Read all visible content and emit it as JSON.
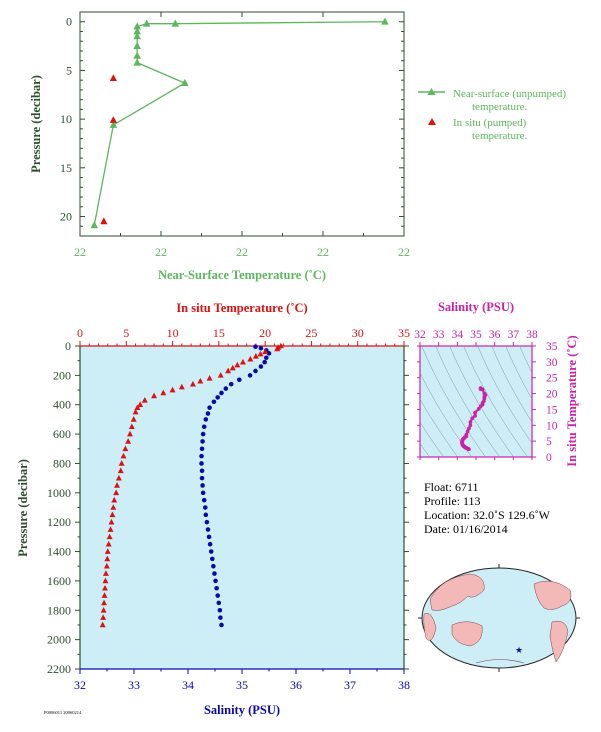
{
  "colors": {
    "green": "#5cb85c",
    "red": "#dd1111",
    "blue": "#0a0aa8",
    "magenta": "#cc22aa",
    "plot_bg": "#cdeef6",
    "axis_dark": "#2f4f2f"
  },
  "chart_data": [
    {
      "id": "near_surface",
      "type": "scatter",
      "xlabel": "Near-Surface Temperature (˚C)",
      "ylabel": "Pressure (decibar)",
      "x_tick_labels": [
        "22",
        "22",
        "22",
        "22",
        "22"
      ],
      "y_ticks": [
        0,
        5,
        10,
        15,
        20
      ],
      "ylim": [
        22,
        -1
      ],
      "series": [
        {
          "name": "Near-surface (unpumped) temperature.",
          "marker": "triangle-line",
          "points": [
            {
              "x": 22.28,
              "y": 0.0
            },
            {
              "x": 22.06,
              "y": 0.2
            },
            {
              "x": 22.03,
              "y": 0.2
            },
            {
              "x": 22.02,
              "y": 0.5
            },
            {
              "x": 22.02,
              "y": 1.0
            },
            {
              "x": 22.02,
              "y": 1.5
            },
            {
              "x": 22.02,
              "y": 2.5
            },
            {
              "x": 22.02,
              "y": 3.5
            },
            {
              "x": 22.02,
              "y": 4.2
            },
            {
              "x": 22.07,
              "y": 6.3
            },
            {
              "x": 21.995,
              "y": 10.6
            },
            {
              "x": 21.975,
              "y": 20.9
            }
          ]
        },
        {
          "name": "In situ (pumped) temperature.",
          "marker": "triangle",
          "points": [
            {
              "x": 21.995,
              "y": 5.8
            },
            {
              "x": 21.995,
              "y": 10.1
            },
            {
              "x": 21.985,
              "y": 20.5
            }
          ]
        }
      ]
    },
    {
      "id": "profile",
      "type": "scatter",
      "title_top": "In situ Temperature (˚C)",
      "xlabel": "Salinity (PSU)",
      "ylabel": "Pressure (decibar)",
      "top_ticks": [
        0,
        5,
        10,
        15,
        20,
        25,
        30,
        35
      ],
      "bottom_ticks": [
        32,
        33,
        34,
        35,
        36,
        37,
        38
      ],
      "y_ticks": [
        0,
        200,
        400,
        600,
        800,
        1000,
        1200,
        1400,
        1600,
        1800,
        2000,
        2200
      ],
      "temp_xlim": [
        0,
        35
      ],
      "sal_xlim": [
        32,
        38
      ],
      "ylim": [
        0,
        2200
      ],
      "temperature": [
        [
          21.7,
          0
        ],
        [
          21.4,
          10
        ],
        [
          21.3,
          20
        ],
        [
          20.0,
          40
        ],
        [
          19.5,
          55
        ],
        [
          19.0,
          70
        ],
        [
          18.4,
          90
        ],
        [
          17.6,
          110
        ],
        [
          17.0,
          130
        ],
        [
          16.5,
          150
        ],
        [
          16.0,
          170
        ],
        [
          15.2,
          200
        ],
        [
          14.0,
          220
        ],
        [
          13.0,
          240
        ],
        [
          12.2,
          260
        ],
        [
          11.0,
          280
        ],
        [
          10.0,
          300
        ],
        [
          9.0,
          320
        ],
        [
          8.0,
          340
        ],
        [
          7.0,
          370
        ],
        [
          6.5,
          400
        ],
        [
          6.2,
          420
        ],
        [
          6.0,
          450
        ],
        [
          5.8,
          500
        ],
        [
          5.6,
          550
        ],
        [
          5.4,
          600
        ],
        [
          5.2,
          650
        ],
        [
          4.9,
          700
        ],
        [
          4.7,
          750
        ],
        [
          4.5,
          800
        ],
        [
          4.4,
          850
        ],
        [
          4.2,
          900
        ],
        [
          4.0,
          950
        ],
        [
          3.9,
          1000
        ],
        [
          3.7,
          1050
        ],
        [
          3.6,
          1100
        ],
        [
          3.5,
          1150
        ],
        [
          3.4,
          1200
        ],
        [
          3.3,
          1250
        ],
        [
          3.2,
          1300
        ],
        [
          3.1,
          1350
        ],
        [
          3.0,
          1400
        ],
        [
          2.95,
          1450
        ],
        [
          2.9,
          1500
        ],
        [
          2.8,
          1550
        ],
        [
          2.75,
          1600
        ],
        [
          2.7,
          1650
        ],
        [
          2.65,
          1700
        ],
        [
          2.6,
          1750
        ],
        [
          2.55,
          1800
        ],
        [
          2.5,
          1850
        ],
        [
          2.45,
          1900
        ]
      ],
      "salinity": [
        [
          35.25,
          5
        ],
        [
          35.35,
          15
        ],
        [
          35.45,
          30
        ],
        [
          35.5,
          50
        ],
        [
          35.45,
          80
        ],
        [
          35.42,
          110
        ],
        [
          35.35,
          140
        ],
        [
          35.25,
          170
        ],
        [
          35.15,
          200
        ],
        [
          34.95,
          230
        ],
        [
          34.8,
          260
        ],
        [
          34.7,
          290
        ],
        [
          34.62,
          320
        ],
        [
          34.55,
          350
        ],
        [
          34.48,
          380
        ],
        [
          34.4,
          420
        ],
        [
          34.37,
          460
        ],
        [
          34.33,
          500
        ],
        [
          34.3,
          550
        ],
        [
          34.28,
          600
        ],
        [
          34.27,
          650
        ],
        [
          34.26,
          700
        ],
        [
          34.25,
          750
        ],
        [
          34.25,
          800
        ],
        [
          34.26,
          850
        ],
        [
          34.26,
          900
        ],
        [
          34.27,
          950
        ],
        [
          34.28,
          1000
        ],
        [
          34.3,
          1050
        ],
        [
          34.32,
          1100
        ],
        [
          34.33,
          1150
        ],
        [
          34.35,
          1200
        ],
        [
          34.37,
          1250
        ],
        [
          34.39,
          1300
        ],
        [
          34.41,
          1350
        ],
        [
          34.43,
          1400
        ],
        [
          34.45,
          1450
        ],
        [
          34.47,
          1500
        ],
        [
          34.49,
          1550
        ],
        [
          34.51,
          1600
        ],
        [
          34.53,
          1650
        ],
        [
          34.55,
          1700
        ],
        [
          34.57,
          1750
        ],
        [
          34.59,
          1800
        ],
        [
          34.6,
          1850
        ],
        [
          34.62,
          1900
        ]
      ]
    },
    {
      "id": "ts_diagram",
      "type": "scatter",
      "title_top": "Salinity (PSU)",
      "ylabel": "In situ Temperature (˚C)",
      "x_ticks": [
        32,
        33,
        34,
        35,
        36,
        37,
        38
      ],
      "y_ticks": [
        0,
        5,
        10,
        15,
        20,
        25,
        30,
        35
      ],
      "xlim": [
        32,
        38
      ],
      "ylim": [
        0,
        35
      ]
    }
  ],
  "info": {
    "float": "Float:  6711",
    "profile": "Profile:  113",
    "location": "Location:  32.0˚S  129.6˚W",
    "date": "Date:  01/16/2014"
  },
  "footer_code": "P0006011 20060214"
}
